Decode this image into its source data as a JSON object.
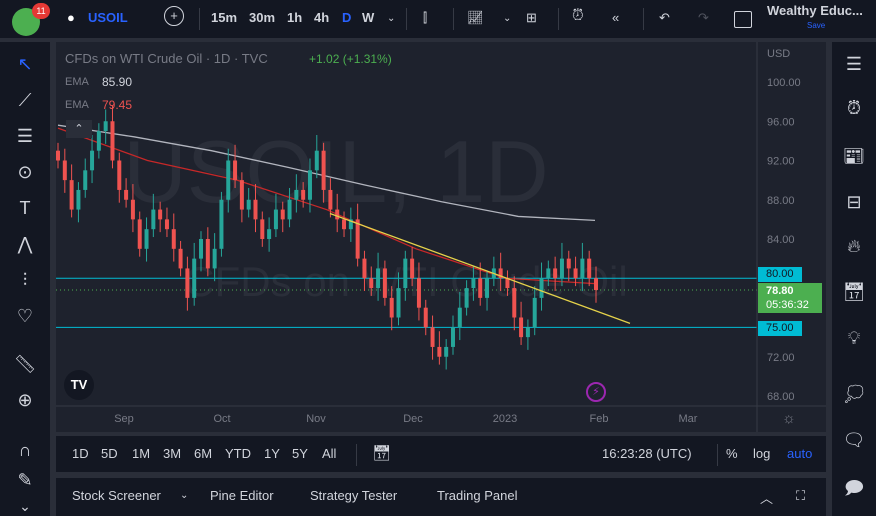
{
  "header": {
    "notifications": "11",
    "symbol": "USOIL",
    "intervals": [
      "15m",
      "30m",
      "1h",
      "4h",
      "D",
      "W"
    ],
    "active_interval": "D",
    "account": "Wealthy Educ...",
    "save_label": "Save"
  },
  "legend": {
    "title": "CFDs on WTI Crude Oil · 1D · TVC",
    "change": "+1.02 (+1.31%)",
    "ema1_label": "EMA",
    "ema1_value": "85.90",
    "ema2_label": "EMA",
    "ema2_value": "79.45"
  },
  "watermark": {
    "line1": "USOIL, 1D",
    "line2": "CFDs on WTI Crude Oil"
  },
  "price_axis": {
    "currency": "USD",
    "labels": [
      "100.00",
      "96.00",
      "92.00",
      "88.00",
      "84.00",
      "72.00",
      "68.00"
    ],
    "label_values": [
      100,
      96,
      92,
      88,
      84,
      72,
      68
    ],
    "level_80": "80.00",
    "level_75": "75.00",
    "last_price": "78.80",
    "countdown": "05:36:32"
  },
  "time_axis": {
    "labels": [
      "Sep",
      "Oct",
      "Nov",
      "Dec",
      "2023",
      "Feb",
      "Mar"
    ]
  },
  "chart_data": {
    "type": "candlestick",
    "ylim": [
      66,
      104
    ],
    "closes": [
      92,
      90,
      87,
      89,
      91,
      93,
      95,
      96,
      92,
      89,
      88,
      86,
      83,
      85,
      87,
      86,
      85,
      83,
      81,
      78,
      82,
      84,
      81,
      83,
      88,
      92,
      90,
      87,
      88,
      86,
      84,
      85,
      87,
      86,
      88,
      89,
      88,
      91,
      93,
      89,
      87,
      86,
      85,
      86,
      82,
      80,
      79,
      81,
      78,
      76,
      79,
      82,
      80,
      77,
      75,
      73,
      72,
      73,
      75,
      77,
      79,
      80,
      78,
      80,
      81,
      80,
      79,
      76,
      74,
      75,
      78,
      80,
      81,
      80,
      82,
      81,
      80,
      82,
      80,
      78.8
    ],
    "ema_long": [
      95.6,
      94.4,
      93,
      91.3,
      89.5,
      87.8,
      86.3,
      85.9
    ],
    "ema_short": [
      95.3,
      92,
      90,
      87,
      83,
      80,
      79.45
    ],
    "horizontal_levels": [
      80,
      75
    ],
    "trendline": [
      86.6,
      75.4
    ],
    "colors": {
      "up": "#26a69a",
      "down": "#ef5350",
      "ema_long": "#b2b5be",
      "ema_short": "#c62828",
      "levels": "#00bcd4",
      "trend": "#e5d24a"
    }
  },
  "timeframes": [
    "1D",
    "5D",
    "1M",
    "3M",
    "6M",
    "YTD",
    "1Y",
    "5Y",
    "All"
  ],
  "clock": "16:23:28 (UTC)",
  "scale": {
    "percent": "%",
    "log": "log",
    "auto": "auto"
  },
  "bottom_tabs": [
    "Stock Screener",
    "Pine Editor",
    "Strategy Tester",
    "Trading Panel"
  ]
}
